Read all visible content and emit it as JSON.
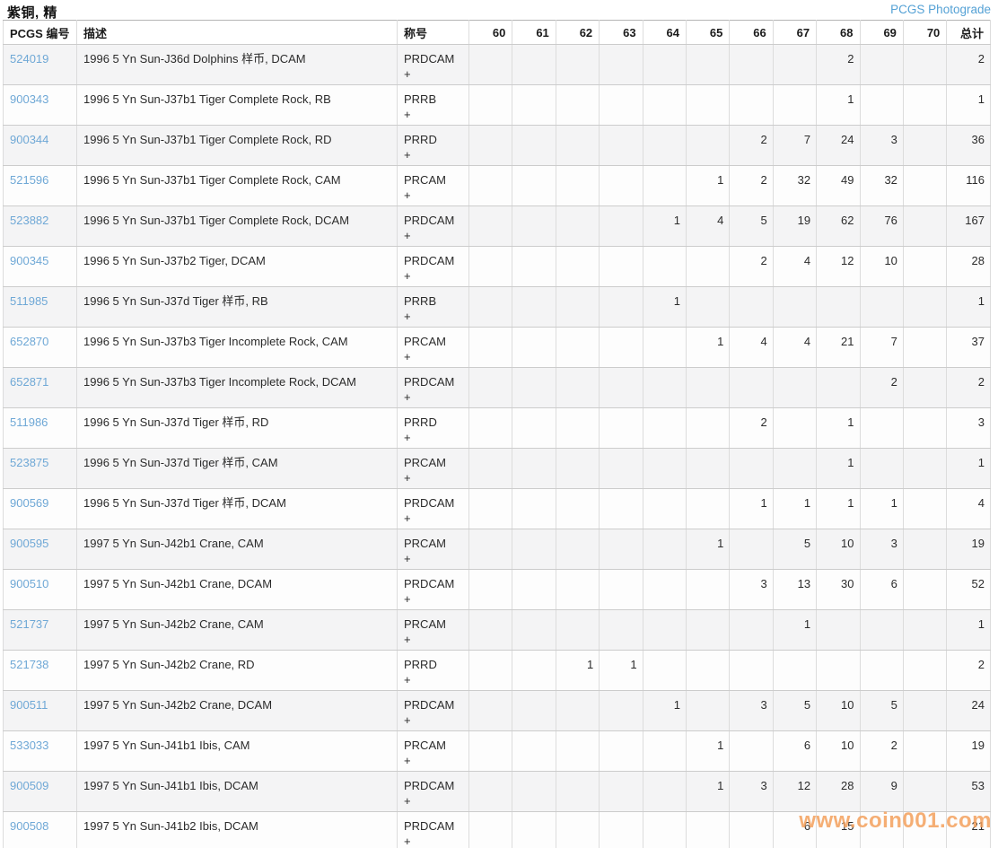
{
  "page": {
    "title": "紫铜, 精",
    "photograde_link": "PCGS Photograde"
  },
  "colors": {
    "link_blue": "#6fa8d6",
    "photograde_blue": "#54a1d5",
    "watermark_orange": "#f3a05c",
    "row_alt_gray": "#f4f4f5",
    "border_gray": "#d2d2d2"
  },
  "watermark": "www.coin001.com",
  "table": {
    "columns": [
      "PCGS 编号",
      "描述",
      "称号",
      "60",
      "61",
      "62",
      "63",
      "64",
      "65",
      "66",
      "67",
      "68",
      "69",
      "70",
      "总计"
    ],
    "grade_labels": [
      "60",
      "61",
      "62",
      "63",
      "64",
      "65",
      "66",
      "67",
      "68",
      "69",
      "70"
    ],
    "rows": [
      {
        "pcgs_no": "524019",
        "description": "1996 5 Yn Sun-J36d Dolphins 样币, DCAM",
        "designation": "PRDCAM",
        "plus": "+",
        "grades": [
          "",
          "",
          "",
          "",
          "",
          "",
          "",
          "",
          "2",
          "",
          ""
        ],
        "total": "2"
      },
      {
        "pcgs_no": "900343",
        "description": "1996 5 Yn Sun-J37b1 Tiger Complete Rock, RB",
        "designation": "PRRB",
        "plus": "+",
        "grades": [
          "",
          "",
          "",
          "",
          "",
          "",
          "",
          "",
          "1",
          "",
          ""
        ],
        "total": "1"
      },
      {
        "pcgs_no": "900344",
        "description": "1996 5 Yn Sun-J37b1 Tiger Complete Rock, RD",
        "designation": "PRRD",
        "plus": "+",
        "grades": [
          "",
          "",
          "",
          "",
          "",
          "",
          "2",
          "7",
          "24",
          "3",
          ""
        ],
        "total": "36"
      },
      {
        "pcgs_no": "521596",
        "description": "1996 5 Yn Sun-J37b1 Tiger Complete Rock, CAM",
        "designation": "PRCAM",
        "plus": "+",
        "grades": [
          "",
          "",
          "",
          "",
          "",
          "1",
          "2",
          "32",
          "49",
          "32",
          ""
        ],
        "total": "116"
      },
      {
        "pcgs_no": "523882",
        "description": "1996 5 Yn Sun-J37b1 Tiger Complete Rock, DCAM",
        "designation": "PRDCAM",
        "plus": "+",
        "grades": [
          "",
          "",
          "",
          "",
          "1",
          "4",
          "5",
          "19",
          "62",
          "76",
          ""
        ],
        "total": "167"
      },
      {
        "pcgs_no": "900345",
        "description": "1996 5 Yn Sun-J37b2 Tiger, DCAM",
        "designation": "PRDCAM",
        "plus": "+",
        "grades": [
          "",
          "",
          "",
          "",
          "",
          "",
          "2",
          "4",
          "12",
          "10",
          ""
        ],
        "total": "28"
      },
      {
        "pcgs_no": "511985",
        "description": "1996 5 Yn Sun-J37d Tiger 样币, RB",
        "designation": "PRRB",
        "plus": "+",
        "grades": [
          "",
          "",
          "",
          "",
          "1",
          "",
          "",
          "",
          "",
          "",
          ""
        ],
        "total": "1"
      },
      {
        "pcgs_no": "652870",
        "description": "1996 5 Yn Sun-J37b3 Tiger Incomplete Rock, CAM",
        "designation": "PRCAM",
        "plus": "+",
        "grades": [
          "",
          "",
          "",
          "",
          "",
          "1",
          "4",
          "4",
          "21",
          "7",
          ""
        ],
        "total": "37"
      },
      {
        "pcgs_no": "652871",
        "description": "1996 5 Yn Sun-J37b3 Tiger Incomplete Rock, DCAM",
        "designation": "PRDCAM",
        "plus": "+",
        "grades": [
          "",
          "",
          "",
          "",
          "",
          "",
          "",
          "",
          "",
          "2",
          ""
        ],
        "total": "2"
      },
      {
        "pcgs_no": "511986",
        "description": "1996 5 Yn Sun-J37d Tiger 样币, RD",
        "designation": "PRRD",
        "plus": "+",
        "grades": [
          "",
          "",
          "",
          "",
          "",
          "",
          "2",
          "",
          "1",
          "",
          ""
        ],
        "total": "3"
      },
      {
        "pcgs_no": "523875",
        "description": "1996 5 Yn Sun-J37d Tiger 样币, CAM",
        "designation": "PRCAM",
        "plus": "+",
        "grades": [
          "",
          "",
          "",
          "",
          "",
          "",
          "",
          "",
          "1",
          "",
          ""
        ],
        "total": "1"
      },
      {
        "pcgs_no": "900569",
        "description": "1996 5 Yn Sun-J37d Tiger 样币, DCAM",
        "designation": "PRDCAM",
        "plus": "+",
        "grades": [
          "",
          "",
          "",
          "",
          "",
          "",
          "1",
          "1",
          "1",
          "1",
          ""
        ],
        "total": "4"
      },
      {
        "pcgs_no": "900595",
        "description": "1997 5 Yn Sun-J42b1 Crane, CAM",
        "designation": "PRCAM",
        "plus": "+",
        "grades": [
          "",
          "",
          "",
          "",
          "",
          "1",
          "",
          "5",
          "10",
          "3",
          ""
        ],
        "total": "19"
      },
      {
        "pcgs_no": "900510",
        "description": "1997 5 Yn Sun-J42b1 Crane, DCAM",
        "designation": "PRDCAM",
        "plus": "+",
        "grades": [
          "",
          "",
          "",
          "",
          "",
          "",
          "3",
          "13",
          "30",
          "6",
          ""
        ],
        "total": "52"
      },
      {
        "pcgs_no": "521737",
        "description": "1997 5 Yn Sun-J42b2 Crane, CAM",
        "designation": "PRCAM",
        "plus": "+",
        "grades": [
          "",
          "",
          "",
          "",
          "",
          "",
          "",
          "1",
          "",
          "",
          ""
        ],
        "total": "1"
      },
      {
        "pcgs_no": "521738",
        "description": "1997 5 Yn Sun-J42b2 Crane, RD",
        "designation": "PRRD",
        "plus": "+",
        "grades": [
          "",
          "",
          "1",
          "1",
          "",
          "",
          "",
          "",
          "",
          "",
          ""
        ],
        "total": "2"
      },
      {
        "pcgs_no": "900511",
        "description": "1997 5 Yn Sun-J42b2 Crane, DCAM",
        "designation": "PRDCAM",
        "plus": "+",
        "grades": [
          "",
          "",
          "",
          "",
          "1",
          "",
          "3",
          "5",
          "10",
          "5",
          ""
        ],
        "total": "24"
      },
      {
        "pcgs_no": "533033",
        "description": "1997 5 Yn Sun-J41b1 Ibis, CAM",
        "designation": "PRCAM",
        "plus": "+",
        "grades": [
          "",
          "",
          "",
          "",
          "",
          "1",
          "",
          "6",
          "10",
          "2",
          ""
        ],
        "total": "19"
      },
      {
        "pcgs_no": "900509",
        "description": "1997 5 Yn Sun-J41b1 Ibis, DCAM",
        "designation": "PRDCAM",
        "plus": "+",
        "grades": [
          "",
          "",
          "",
          "",
          "",
          "1",
          "3",
          "12",
          "28",
          "9",
          ""
        ],
        "total": "53"
      },
      {
        "pcgs_no": "900508",
        "description": "1997 5 Yn Sun-J41b2 Ibis, DCAM",
        "designation": "PRDCAM",
        "plus": "+",
        "grades": [
          "",
          "",
          "",
          "",
          "",
          "",
          "",
          "6",
          "15",
          "",
          ""
        ],
        "total": "21"
      }
    ]
  }
}
